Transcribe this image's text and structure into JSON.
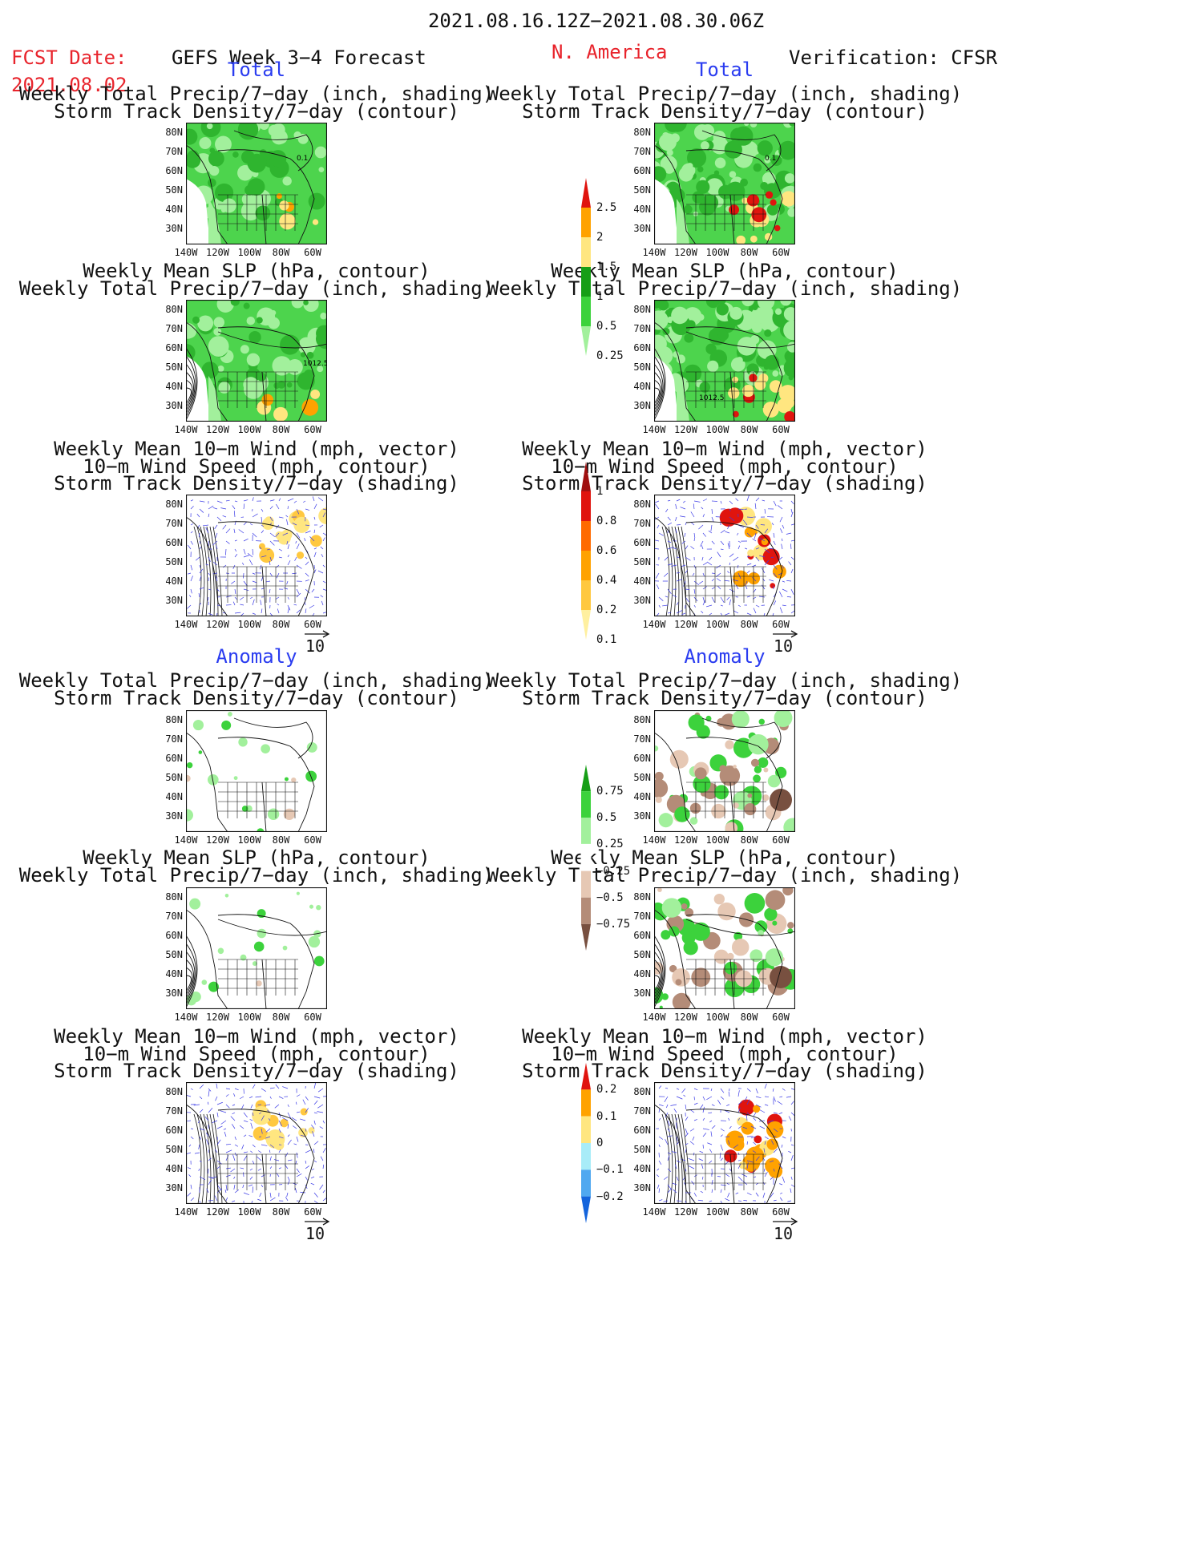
{
  "header": {
    "date_range": "2021.08.16.12Z−2021.08.30.06Z",
    "fcst_label": "FCST Date:",
    "fcst_date": "2021.08.02",
    "forecast_label": "GEFS Week 3−4 Forecast",
    "region": "N. America",
    "verification": "Verification: CFSR"
  },
  "sections": {
    "total": "Total",
    "anomaly": "Anomaly"
  },
  "titles": {
    "precip_storm": [
      "Weekly Total Precip/7−day (inch, shading)",
      "Storm Track Density/7−day (contour)"
    ],
    "slp_precip": [
      "Weekly Mean SLP (hPa, contour)",
      "Weekly Total Precip/7−day (inch, shading)"
    ],
    "wind": [
      "Weekly Mean 10−m Wind (mph, vector)",
      "10−m Wind Speed (mph, contour)",
      "Storm Track Density/7−day (shading)"
    ]
  },
  "axes": {
    "lat_labels": [
      "80N",
      "70N",
      "60N",
      "50N",
      "40N",
      "30N"
    ],
    "lon_labels": [
      "140W",
      "120W",
      "100W",
      "80W",
      "60W"
    ]
  },
  "vector_ref": "10",
  "contour_labels": {
    "storm": "0.1",
    "slp": "1012.5"
  },
  "colorbars": {
    "precip_total": {
      "labels": [
        "2.5",
        "2",
        "1.5",
        "1",
        "0.5",
        "0.25"
      ],
      "colors": [
        "#e0140e",
        "#ffa200",
        "#ffe680",
        "#169e16",
        "#3cd23c",
        "#a2f09c"
      ]
    },
    "storm_total": {
      "labels": [
        "1",
        "0.8",
        "0.6",
        "0.4",
        "0.2",
        "0.1"
      ],
      "colors": [
        "#a01010",
        "#e0140e",
        "#ff6a00",
        "#ffa200",
        "#ffc840",
        "#fff0a0"
      ]
    },
    "precip_anom": {
      "labels": [
        "0.75",
        "0.5",
        "0.25",
        "−0.25",
        "−0.5",
        "−0.75"
      ],
      "colors": [
        "#169e16",
        "#3cd23c",
        "#a2f09c",
        "#ffffff",
        "#e6c8b4",
        "#b48c78",
        "#785040"
      ]
    },
    "storm_anom": {
      "labels": [
        "0.2",
        "0.1",
        "0",
        "−0.1",
        "−0.2"
      ],
      "colors": [
        "#e0140e",
        "#ffa200",
        "#ffe680",
        "#a8ecf8",
        "#50a8f0",
        "#1464dc"
      ]
    }
  },
  "chart_data": [
    {
      "type": "heatmap",
      "panel": "forecast-total-precip-storm",
      "title": "Weekly Total Precip/7−day (inch, shading) / Storm Track Density/7−day (contour)"
    },
    {
      "type": "heatmap",
      "panel": "verification-total-precip-storm",
      "title": "Weekly Total Precip/7−day (inch, shading) / Storm Track Density/7−day (contour)"
    },
    {
      "type": "heatmap",
      "panel": "forecast-total-slp-precip",
      "title": "Weekly Mean SLP (hPa, contour) / Weekly Total Precip/7−day (inch, shading)"
    },
    {
      "type": "heatmap",
      "panel": "verification-total-slp-precip",
      "title": "Weekly Mean SLP (hPa, contour) / Weekly Total Precip/7−day (inch, shading)"
    },
    {
      "type": "heatmap",
      "panel": "forecast-total-wind",
      "title": "Weekly Mean 10−m Wind (mph, vector) / 10−m Wind Speed (mph, contour) / Storm Track Density/7−day (shading)"
    },
    {
      "type": "heatmap",
      "panel": "verification-total-wind",
      "title": "Weekly Mean 10−m Wind (mph, vector) / 10−m Wind Speed (mph, contour) / Storm Track Density/7−day (shading)"
    },
    {
      "type": "heatmap",
      "panel": "forecast-anomaly-precip-storm",
      "title": "Weekly Total Precip/7−day (inch, shading) / Storm Track Density/7−day (contour)"
    },
    {
      "type": "heatmap",
      "panel": "verification-anomaly-precip-storm",
      "title": "Weekly Total Precip/7−day (inch, shading) / Storm Track Density/7−day (contour)"
    },
    {
      "type": "heatmap",
      "panel": "forecast-anomaly-slp-precip",
      "title": "Weekly Mean SLP (hPa, contour) / Weekly Total Precip/7−day (inch, shading)"
    },
    {
      "type": "heatmap",
      "panel": "verification-anomaly-slp-precip",
      "title": "Weekly Mean SLP (hPa, contour) / Weekly Total Precip/7−day (inch, shading)"
    },
    {
      "type": "heatmap",
      "panel": "forecast-anomaly-wind",
      "title": "Weekly Mean 10−m Wind (mph, vector) / 10−m Wind Speed (mph, contour) / Storm Track Density/7−day (shading)"
    },
    {
      "type": "heatmap",
      "panel": "verification-anomaly-wind",
      "title": "Weekly Mean 10−m Wind (mph, vector) / 10−m Wind Speed (mph, contour) / Storm Track Density/7−day (shading)"
    }
  ]
}
